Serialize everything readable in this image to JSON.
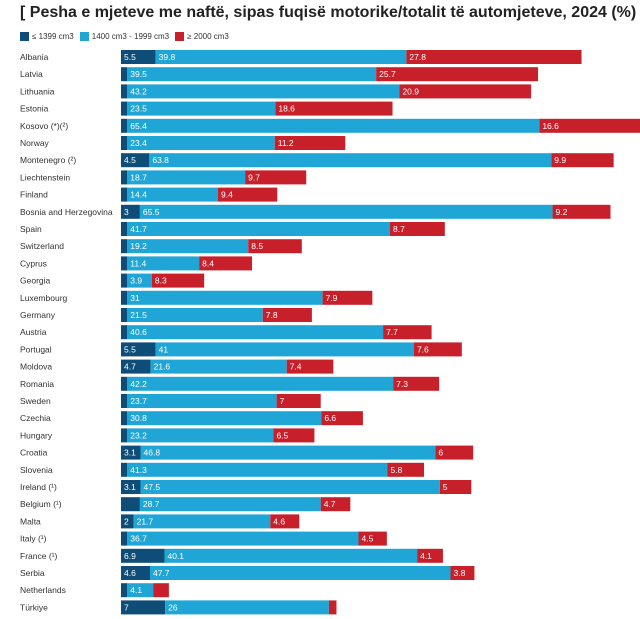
{
  "chart_data": {
    "type": "bar",
    "stacked": true,
    "orientation": "horizontal",
    "title": "[ Pesha e mjeteve me naftë, sipas fuqisë motorike/totalit të automjeteve, 2024 (%) ]",
    "legend_position": "top-left",
    "grid": false,
    "colors": [
      "#0d4d78",
      "#1fa6d6",
      "#c8202a"
    ],
    "categories": [
      "Albania",
      "Latvia",
      "Lithuania",
      "Estonia",
      "Kosovo (*)(²)",
      "Norway",
      "Montenegro (²)",
      "Liechtenstein",
      "Finland",
      "Bosnia and Herzegovina",
      "Spain",
      "Switzerland",
      "Cyprus",
      "Georgia",
      "Luxembourg",
      "Germany",
      "Austria",
      "Portugal",
      "Moldova",
      "Romania",
      "Sweden",
      "Czechia",
      "Hungary",
      "Croatia",
      "Slovenia",
      "Ireland (¹)",
      "Belgium (¹)",
      "Malta",
      "Italy (¹)",
      "France (¹)",
      "Serbia",
      "Netherlands",
      "Türkiye"
    ],
    "series": [
      {
        "name": "≤ 1399 cm3",
        "values": [
          5.5,
          1,
          1,
          1,
          1,
          1,
          4.5,
          1,
          1,
          3,
          1,
          1,
          1,
          1,
          1,
          1,
          1,
          5.5,
          4.7,
          1,
          1,
          1,
          1,
          3.1,
          1,
          3.1,
          3,
          2,
          1,
          6.9,
          4.6,
          1,
          7
        ]
      },
      {
        "name": "1400 cm3 - 1999 cm3",
        "values": [
          39.8,
          39.5,
          43.2,
          23.5,
          65.4,
          23.4,
          63.8,
          18.7,
          14.4,
          65.5,
          41.7,
          19.2,
          11.4,
          3.9,
          31,
          21.5,
          40.6,
          41,
          21.6,
          42.2,
          23.7,
          30.8,
          23.2,
          46.8,
          41.3,
          47.5,
          28.7,
          21.7,
          36.7,
          40.1,
          47.7,
          4.1,
          26
        ]
      },
      {
        "name": "≥ 2000 cm3",
        "values": [
          27.8,
          25.7,
          20.9,
          18.6,
          16.6,
          11.2,
          9.9,
          9.7,
          9.4,
          9.2,
          8.7,
          8.5,
          8.4,
          8.3,
          7.9,
          7.8,
          7.7,
          7.6,
          7.4,
          7.3,
          7,
          6.6,
          6.5,
          6,
          5.8,
          5,
          4.7,
          4.6,
          4.5,
          4.1,
          3.8,
          2.5,
          1.2
        ]
      }
    ],
    "value_labels": [
      [
        "5.5",
        "",
        "",
        "",
        "",
        "",
        "4.5",
        "",
        "",
        "3",
        "",
        "",
        "",
        "",
        "",
        "",
        "",
        "5.5",
        "4.7",
        "",
        "",
        "",
        "",
        "3.1",
        "",
        "3.1",
        "",
        "2",
        "",
        "6.9",
        "4.6",
        "",
        "7"
      ],
      [
        "39.8",
        "39.5",
        "43.2",
        "23.5",
        "65.4",
        "23.4",
        "63.8",
        "18.7",
        "14.4",
        "65.5",
        "41.7",
        "19.2",
        "11.4",
        "3.9",
        "31",
        "21.5",
        "40.6",
        "41",
        "21.6",
        "42.2",
        "23.7",
        "30.8",
        "23.2",
        "46.8",
        "41.3",
        "47.5",
        "28.7",
        "21.7",
        "36.7",
        "40.1",
        "47.7",
        "4.1",
        "26"
      ],
      [
        "27.8",
        "25.7",
        "20.9",
        "18.6",
        "16.6",
        "11.2",
        "9.9",
        "9.7",
        "9.4",
        "9.2",
        "8.7",
        "8.5",
        "8.4",
        "8.3",
        "7.9",
        "7.8",
        "7.7",
        "7.6",
        "7.4",
        "7.3",
        "7",
        "6.6",
        "6.5",
        "6",
        "5.8",
        "5",
        "4.7",
        "4.6",
        "4.5",
        "4.1",
        "3.8",
        "",
        ""
      ]
    ],
    "xlim": [
      0,
      82
    ]
  }
}
